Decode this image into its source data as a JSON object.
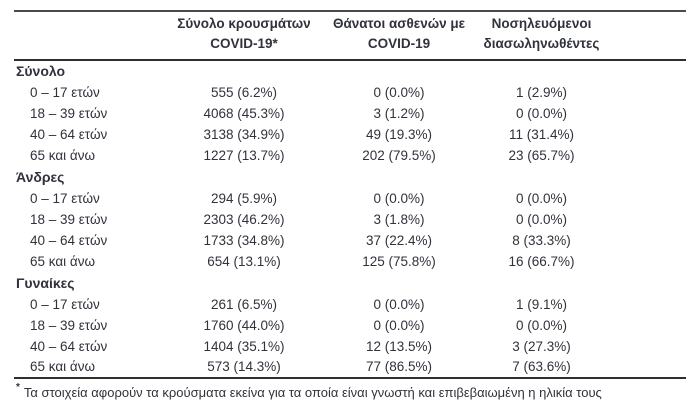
{
  "table": {
    "columns": [
      {
        "line1": "Σύνολο κρουσμάτων",
        "line2": "COVID-19*"
      },
      {
        "line1": "Θάνατοι ασθενών με",
        "line2": "COVID-19"
      },
      {
        "line1": "Νοσηλευόμενοι",
        "line2": "διασωληνωθέντες"
      }
    ],
    "sections": [
      {
        "label": "Σύνολο",
        "rows": [
          {
            "age": "0 – 17 ετών",
            "cases": "555 (6.2%)",
            "deaths": "0 (0.0%)",
            "intubated": "1 (2.9%)"
          },
          {
            "age": "18 – 39 ετών",
            "cases": "4068 (45.3%)",
            "deaths": "3 (1.2%)",
            "intubated": "0 (0.0%)"
          },
          {
            "age": "40 – 64 ετών",
            "cases": "3138 (34.9%)",
            "deaths": "49 (19.3%)",
            "intubated": "11 (31.4%)"
          },
          {
            "age": "65 και άνω",
            "cases": "1227 (13.7%)",
            "deaths": "202 (79.5%)",
            "intubated": "23 (65.7%)"
          }
        ]
      },
      {
        "label": "Άνδρες",
        "rows": [
          {
            "age": "0 – 17 ετών",
            "cases": "294 (5.9%)",
            "deaths": "0 (0.0%)",
            "intubated": "0 (0.0%)"
          },
          {
            "age": "18 – 39 ετών",
            "cases": "2303 (46.2%)",
            "deaths": "3 (1.8%)",
            "intubated": "0 (0.0%)"
          },
          {
            "age": "40 – 64 ετών",
            "cases": "1733 (34.8%)",
            "deaths": "37 (22.4%)",
            "intubated": "8 (33.3%)"
          },
          {
            "age": "65 και άνω",
            "cases": "654 (13.1%)",
            "deaths": "125 (75.8%)",
            "intubated": "16 (66.7%)"
          }
        ]
      },
      {
        "label": "Γυναίκες",
        "rows": [
          {
            "age": "0 – 17 ετών",
            "cases": "261 (6.5%)",
            "deaths": "0 (0.0%)",
            "intubated": "1 (9.1%)"
          },
          {
            "age": "18 – 39 ετών",
            "cases": "1760 (44.0%)",
            "deaths": "0 (0.0%)",
            "intubated": "0 (0.0%)"
          },
          {
            "age": "40 – 64 ετών",
            "cases": "1404 (35.1%)",
            "deaths": "12 (13.5%)",
            "intubated": "3 (27.3%)"
          },
          {
            "age": "65 και άνω",
            "cases": "573 (14.3%)",
            "deaths": "77 (86.5%)",
            "intubated": "7 (63.6%)"
          }
        ]
      }
    ],
    "footnote_marker": "*",
    "footnote": "Τα στοιχεία αφορούν τα κρούσματα εκείνα για τα οποία είναι γνωστή και επιβεβαιωμένη η ηλικία τους"
  },
  "colors": {
    "text": "#30323c",
    "border_top": "#4a4a4a",
    "border_heavy": "#2e2e2e",
    "background": "#ffffff"
  }
}
